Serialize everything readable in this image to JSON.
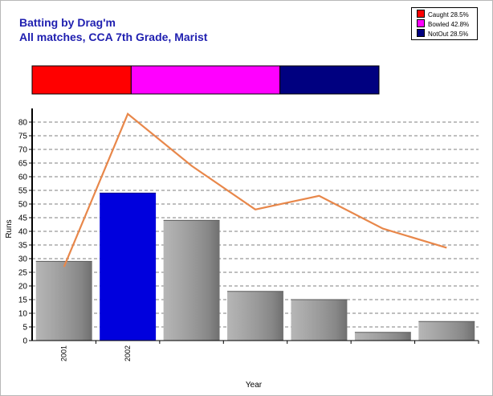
{
  "title": "Batting by Drag'm",
  "subtitle": "All matches, CCA 7th Grade, Marist",
  "colors": {
    "title": "#1f1fb0",
    "caught": "#ff0000",
    "bowled": "#ff00ff",
    "notout": "#000080",
    "highlight_bar": "#0000dd",
    "line": "#e8874a"
  },
  "legend": [
    {
      "label": "Caught 28.5%",
      "color": "#ff0000"
    },
    {
      "label": "Bowled 42.8%",
      "color": "#ff00ff"
    },
    {
      "label": "NotOut 28.5%",
      "color": "#000080"
    }
  ],
  "dismissal_bar": [
    {
      "name": "Caught",
      "pct": 28.5,
      "color": "#ff0000"
    },
    {
      "name": "Bowled",
      "pct": 42.8,
      "color": "#ff00ff"
    },
    {
      "name": "NotOut",
      "pct": 28.5,
      "color": "#000080"
    }
  ],
  "chart_data": {
    "type": "bar",
    "categories": [
      "2001",
      "2002",
      "",
      "",
      "",
      "",
      ""
    ],
    "values": [
      29,
      54,
      44,
      18,
      15,
      3,
      7
    ],
    "highlight_index": 1,
    "line_values": [
      27,
      83,
      64,
      48,
      53,
      41,
      34
    ],
    "xlabel": "Year",
    "ylabel": "Runs",
    "ylim": [
      0,
      85
    ],
    "yticks": [
      0,
      5,
      10,
      15,
      20,
      25,
      30,
      35,
      40,
      45,
      50,
      55,
      60,
      65,
      70,
      75,
      80
    ],
    "grid": true
  }
}
